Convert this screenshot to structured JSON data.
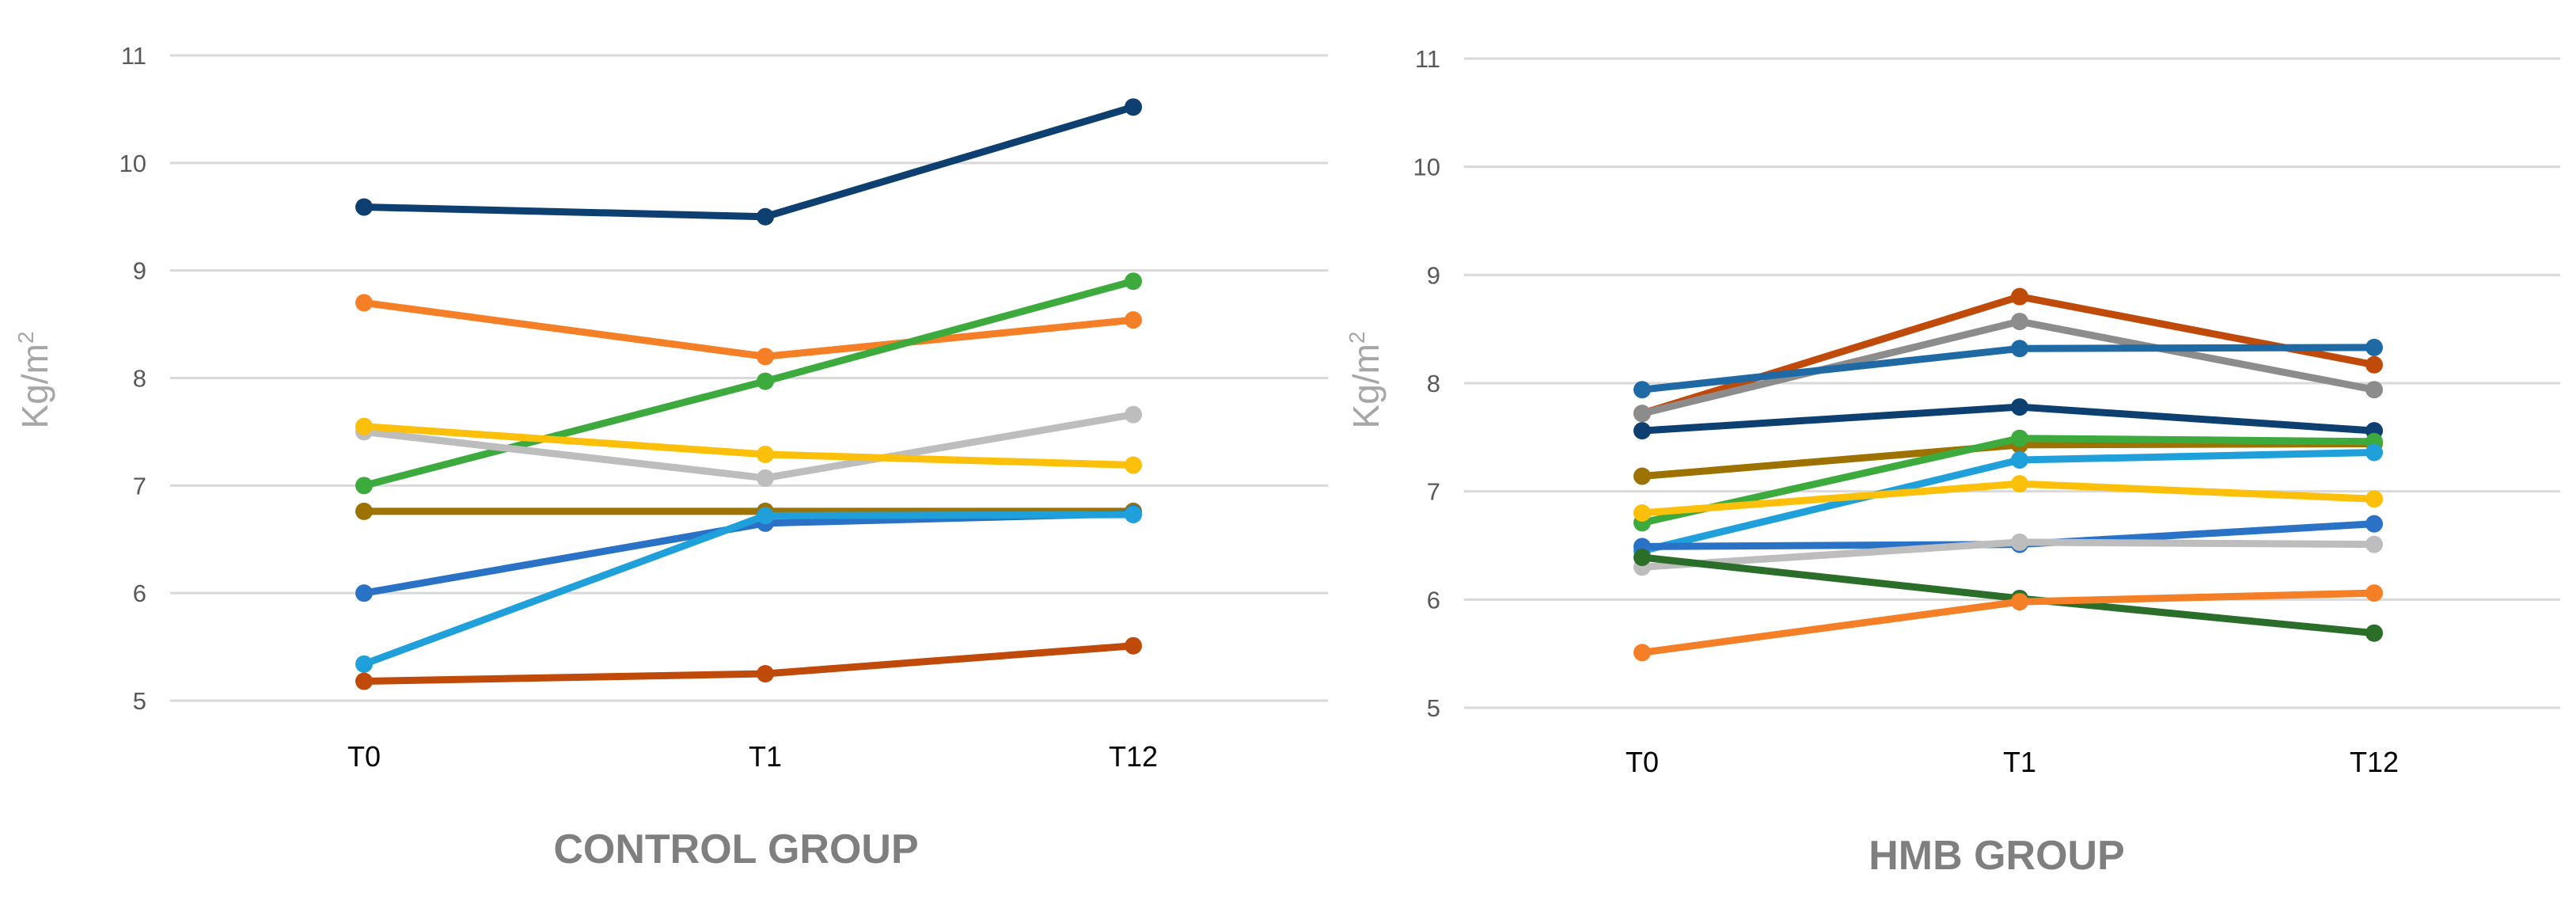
{
  "chart_data": [
    {
      "type": "line",
      "title": "CONTROL GROUP",
      "ylabel": "Kg/m²",
      "ylabel_main": "Kg/m",
      "ylabel_sup": "2",
      "ylim": [
        5,
        11
      ],
      "yticks": [
        "5",
        "6",
        "7",
        "8",
        "9",
        "10",
        "11"
      ],
      "categories": [
        "T0",
        "T1",
        "T12"
      ],
      "grid": true,
      "series": [
        {
          "values": [
            9.59,
            9.5,
            10.52
          ],
          "color": "#0d3f70"
        },
        {
          "values": [
            8.7,
            8.2,
            8.54
          ],
          "color": "#f47f27"
        },
        {
          "values": [
            7.0,
            7.97,
            8.9
          ],
          "color": "#3caa3c"
        },
        {
          "values": [
            7.5,
            7.07,
            7.66
          ],
          "color": "#bdbdbd"
        },
        {
          "values": [
            7.55,
            7.29,
            7.19
          ],
          "color": "#fcbf0a"
        },
        {
          "values": [
            6.76,
            6.76,
            6.76
          ],
          "color": "#9e7200"
        },
        {
          "values": [
            6.0,
            6.65,
            6.74
          ],
          "color": "#2a72c6"
        },
        {
          "values": [
            5.34,
            6.72,
            6.73
          ],
          "color": "#1fa0db"
        },
        {
          "values": [
            5.18,
            5.25,
            5.51
          ],
          "color": "#c04a0a"
        }
      ]
    },
    {
      "type": "line",
      "title": "HMB GROUP",
      "ylabel": "Kg/m²",
      "ylabel_main": "Kg/m",
      "ylabel_sup": "2",
      "ylim": [
        5,
        11
      ],
      "yticks": [
        "5",
        "6",
        "7",
        "8",
        "9",
        "10",
        "11"
      ],
      "categories": [
        "T0",
        "T1",
        "T12"
      ],
      "grid": true,
      "series": [
        {
          "values": [
            7.72,
            8.8,
            8.17
          ],
          "color": "#c04a0a"
        },
        {
          "values": [
            7.72,
            8.57,
            7.94
          ],
          "color": "#8c8c8c"
        },
        {
          "values": [
            7.94,
            8.32,
            8.33
          ],
          "color": "#1f6aa5"
        },
        {
          "values": [
            7.56,
            7.78,
            7.56
          ],
          "color": "#0d3f70"
        },
        {
          "values": [
            7.14,
            7.43,
            7.44
          ],
          "color": "#9e7200"
        },
        {
          "values": [
            6.71,
            7.49,
            7.46
          ],
          "color": "#3caa3c"
        },
        {
          "values": [
            6.45,
            7.29,
            7.36
          ],
          "color": "#1fa0db"
        },
        {
          "values": [
            6.8,
            7.07,
            6.93
          ],
          "color": "#fcbf0a"
        },
        {
          "values": [
            6.49,
            6.51,
            6.7
          ],
          "color": "#2a72c6"
        },
        {
          "values": [
            6.3,
            6.53,
            6.51
          ],
          "color": "#bdbdbd"
        },
        {
          "values": [
            6.39,
            6.01,
            5.69
          ],
          "color": "#2a6e2a"
        },
        {
          "values": [
            5.51,
            5.98,
            6.06
          ],
          "color": "#f47f27"
        }
      ]
    }
  ]
}
